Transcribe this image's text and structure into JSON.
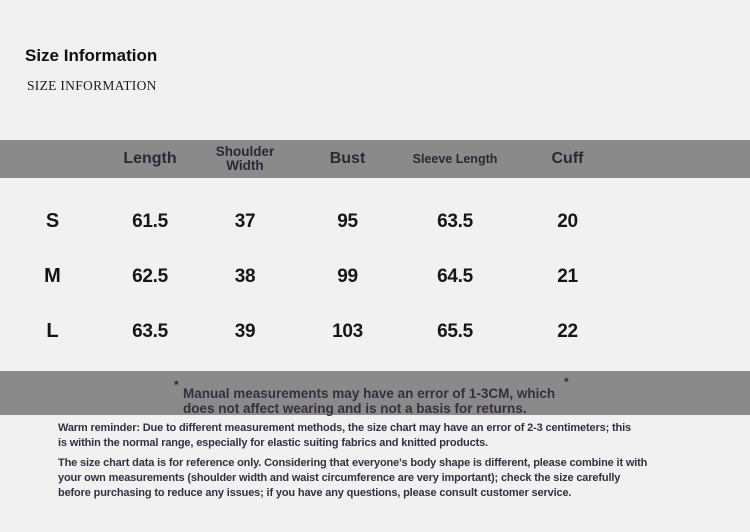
{
  "page": {
    "background": "#f1f1f1",
    "band_color": "#8a8a8a"
  },
  "header": {
    "title": "Size Information",
    "subtitle": "SIZE INFORMATION"
  },
  "size_table": {
    "columns": {
      "size": "",
      "length": "Length",
      "shoulder_width": "Shoulder\nWidth",
      "bust": "Bust",
      "sleeve_length": "Sleeve Length",
      "cuff": "Cuff"
    },
    "rows": [
      {
        "size": "S",
        "length": "61.5",
        "shoulder_width": "37",
        "bust": "95",
        "sleeve_length": "63.5",
        "cuff": "20"
      },
      {
        "size": "M",
        "length": "62.5",
        "shoulder_width": "38",
        "bust": "99",
        "sleeve_length": "64.5",
        "cuff": "21"
      },
      {
        "size": "L",
        "length": "63.5",
        "shoulder_width": "39",
        "bust": "103",
        "sleeve_length": "65.5",
        "cuff": "22"
      }
    ]
  },
  "note": {
    "asterisk": "*",
    "text": "Manual measurements may have an error of 1-3CM, which\ndoes not affect wearing and is not a basis for returns."
  },
  "footer": {
    "paragraph1": "Warm reminder: Due to different measurement methods, the size chart may have an error of 2-3 centimeters; this\nis within the normal range, especially for elastic suiting fabrics and knitted products.",
    "paragraph2": "The size chart data is for reference only. Considering that everyone's body shape is different, please combine it with\nyour own measurements (shoulder width and waist circumference are very important); check the size carefully\nbefore purchasing to reduce any issues; if you have any questions, please consult customer service."
  }
}
